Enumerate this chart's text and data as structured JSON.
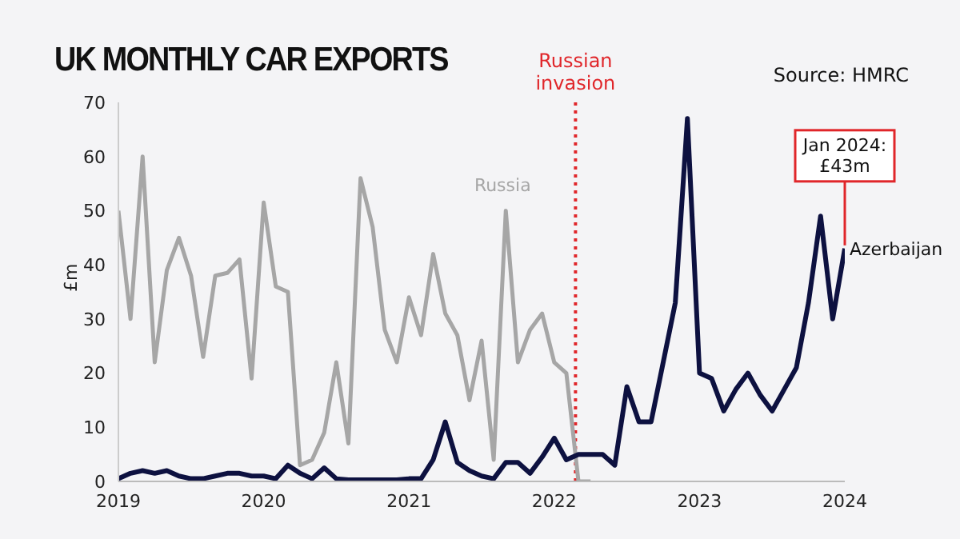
{
  "chart_data": {
    "type": "line",
    "title": "UK MONTHLY CAR EXPORTS",
    "ylabel": "£m",
    "annotations": [
      "Source: HMRC",
      {
        "text": "Jan 2024: £43m",
        "x": "2024-01",
        "y": 43
      }
    ],
    "x": [
      "2019-01",
      "2019-02",
      "2019-03",
      "2019-04",
      "2019-05",
      "2019-06",
      "2019-07",
      "2019-08",
      "2019-09",
      "2019-10",
      "2019-11",
      "2019-12",
      "2020-01",
      "2020-02",
      "2020-03",
      "2020-04",
      "2020-05",
      "2020-06",
      "2020-07",
      "2020-08",
      "2020-09",
      "2020-10",
      "2020-11",
      "2020-12",
      "2021-01",
      "2021-02",
      "2021-03",
      "2021-04",
      "2021-05",
      "2021-06",
      "2021-07",
      "2021-08",
      "2021-09",
      "2021-10",
      "2021-11",
      "2021-12",
      "2022-01",
      "2022-02",
      "2022-03",
      "2022-04",
      "2022-05",
      "2022-06",
      "2022-07",
      "2022-08",
      "2022-09",
      "2022-10",
      "2022-11",
      "2022-12",
      "2023-01",
      "2023-02",
      "2023-03",
      "2023-04",
      "2023-05",
      "2023-06",
      "2023-07",
      "2023-08",
      "2023-09",
      "2023-10",
      "2023-11",
      "2023-12",
      "2024-01"
    ],
    "series": [
      {
        "name": "Russia",
        "color": "#a6a6a6",
        "values": [
          50,
          30,
          60,
          22,
          39,
          45,
          38,
          23,
          38,
          38.5,
          41,
          19,
          51.5,
          36,
          35,
          3,
          4,
          9,
          22,
          7,
          56,
          47,
          28,
          22,
          34,
          27,
          42,
          31,
          27,
          15,
          26,
          4,
          50,
          22,
          28,
          31,
          22,
          20,
          0,
          0,
          null,
          null,
          null,
          null,
          null,
          null,
          null,
          null,
          null,
          null,
          null,
          null,
          null,
          null,
          null,
          null,
          null,
          null,
          null,
          null,
          null
        ]
      },
      {
        "name": "Azerbaijan",
        "color": "#0d1140",
        "values": [
          0.5,
          1.5,
          2,
          1.5,
          2,
          1,
          0.5,
          0.5,
          1,
          1.5,
          1.5,
          1,
          1,
          0.5,
          3,
          1.5,
          0.5,
          2.5,
          0.5,
          0.3,
          0.3,
          0.3,
          0.3,
          0.3,
          0.5,
          0.5,
          4,
          11,
          3.5,
          2,
          1,
          0.5,
          3.5,
          3.5,
          1.5,
          4.5,
          8,
          4,
          5,
          5,
          5,
          3,
          17.5,
          11,
          11,
          22,
          33,
          67,
          20,
          19,
          13,
          17,
          20,
          16,
          13,
          17,
          21,
          33,
          49,
          30,
          43
        ]
      }
    ],
    "ylim": [
      0,
      70
    ],
    "yticks": [
      0,
      10,
      20,
      30,
      40,
      50,
      60,
      70
    ],
    "xlim": [
      "2019",
      "2024-01"
    ],
    "xticks": [
      "2019",
      "2020",
      "2021",
      "2022",
      "2023",
      "2024"
    ],
    "ref_lines": [
      {
        "axis": "x",
        "value": "2022-02-24",
        "label": "Russian invasion",
        "color": "#e0262a",
        "line_style": "dotted"
      }
    ],
    "marker": "none",
    "line_style": "solid"
  }
}
